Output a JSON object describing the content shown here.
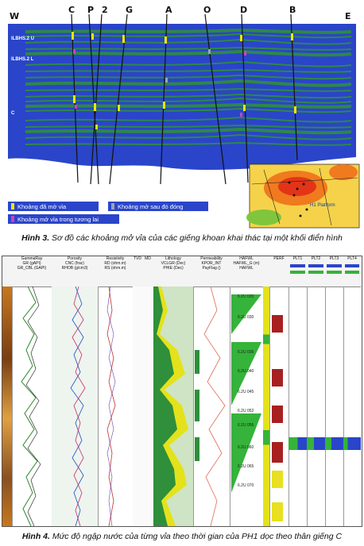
{
  "figure3": {
    "compass": {
      "west": "W",
      "east": "E"
    },
    "wells": [
      "C",
      "P",
      "2",
      "G",
      "A",
      "O",
      "D",
      "B"
    ],
    "reservoirs": [
      "ILBHS.2 U",
      "ILBHS.2 L",
      "C"
    ],
    "inset_label": "H1 Platform",
    "legend": [
      "Khoảng đã mở vỉa",
      "Khoảng mở sau đó đóng",
      "Khoảng mở vỉa trong tương lai"
    ],
    "colors": {
      "open": "#f2e600",
      "closed": "#9aa3b0",
      "future": "#d040c0",
      "sand": "#2f8f3a",
      "shale": "#2a45c9"
    },
    "caption_label": "Hình 3.",
    "caption_text": " Sơ đồ các khoảng mở vỉa của các giếng khoan khai thác tại một khối điển hình"
  },
  "figure4": {
    "headers": {
      "gamma": "GammaRay",
      "porosity": "Porosity",
      "resistivity": "Resistivity",
      "tvd": "TVD",
      "md": "MD",
      "lithology": "Lithology",
      "permeability": "Permeability",
      "hafwl": "HAFWL",
      "perf": "PERF",
      "plt1": "PLT1",
      "plt2": "PLT2",
      "plt3": "PLT3",
      "plt4": "PLT4"
    },
    "subheaders": {
      "gamma": [
        "GR (gAPI)",
        "GR_CBL (GAPI)"
      ],
      "porosity": [
        "CNC (frac)",
        "RHOB (g/cm3)"
      ],
      "resistivity": [
        "RD (ohm.m)",
        "RS (ohm.m)"
      ],
      "lithology": [
        "VCLGR (Dec)",
        "PHIE (Dec)"
      ],
      "permeability": [
        "KPOR_INT",
        "PayFlag ()"
      ],
      "hafwl": [
        "HAFWL_G (m)",
        "HAFWL"
      ]
    },
    "zones": [
      "6.2U 020",
      "6.2U 030",
      "6.2U 036",
      "6.2U 040",
      "6.2U 045",
      "6.2U 052",
      "6.2U 056",
      "6.2U 060",
      "6.2U 065",
      "6.2U 070"
    ],
    "caption_label": "Hình 4.",
    "caption_text": " Mức độ ngập nước của từng vỉa theo thời gian của PH1 dọc theo thân giếng C"
  }
}
